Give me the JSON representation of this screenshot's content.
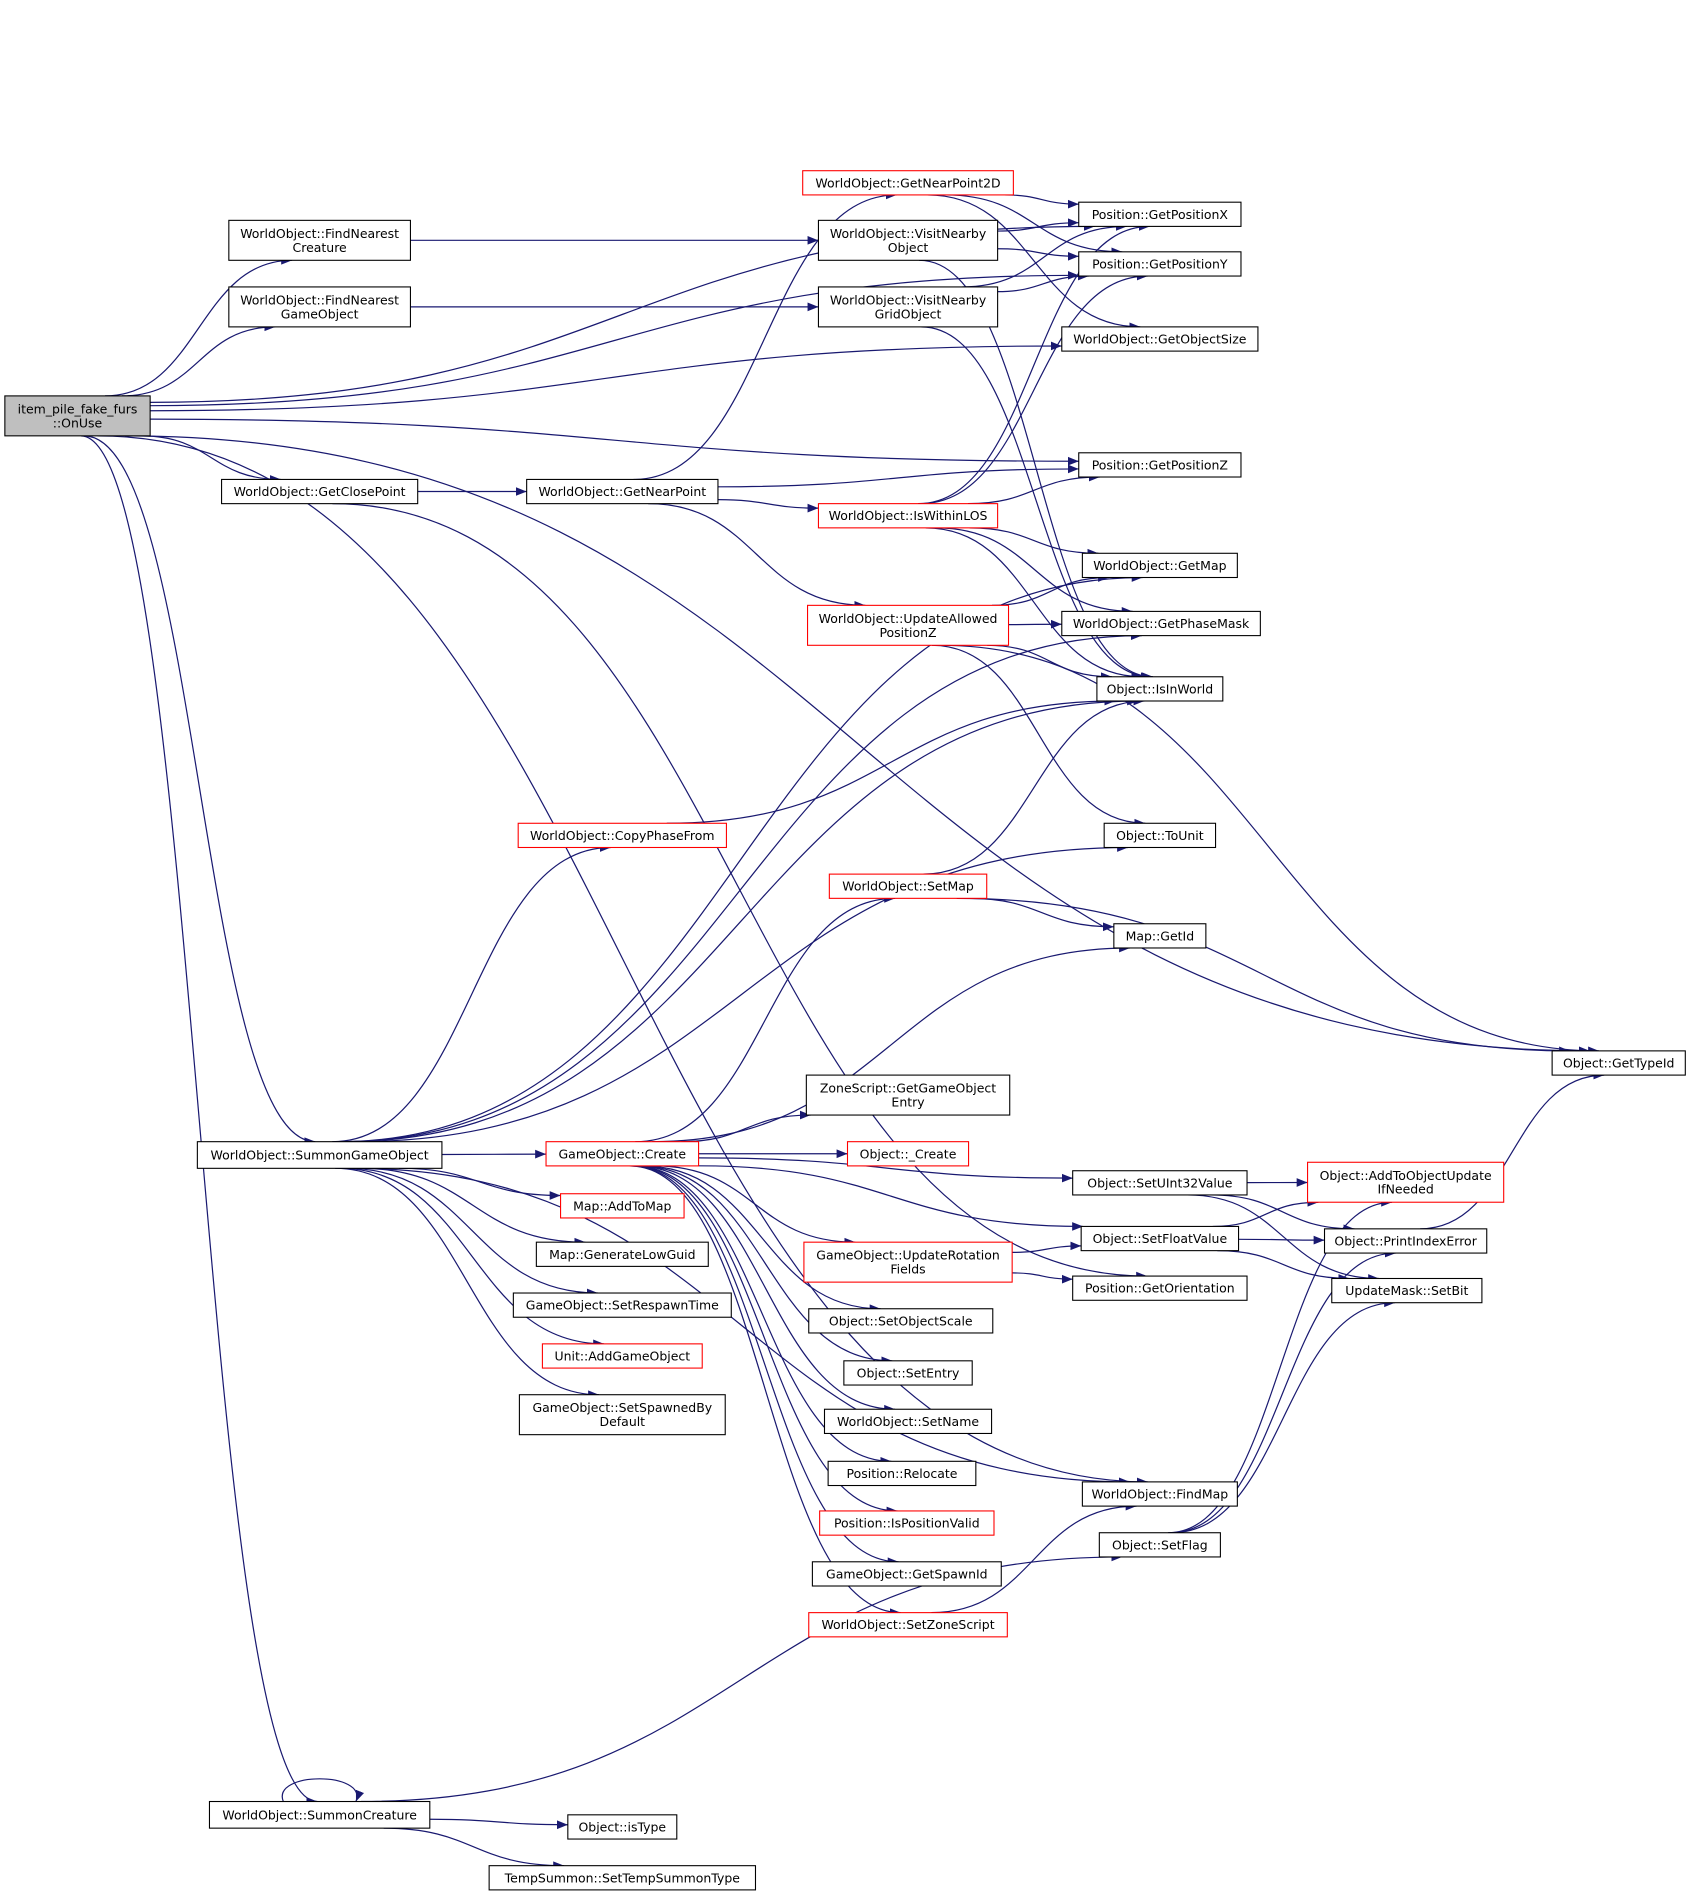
{
  "colors": {
    "edge": "#191970",
    "highlight_border": "#ff0000",
    "root_fill": "#bfbfbf"
  },
  "nodes": [
    {
      "lines": [
        "item_pile_fake_furs",
        "::OnUse"
      ],
      "red": false,
      "root": true
    },
    {
      "lines": [
        "WorldObject::FindNearest",
        "Creature"
      ],
      "red": false
    },
    {
      "lines": [
        "WorldObject::FindNearest",
        "GameObject"
      ],
      "red": false
    },
    {
      "lines": [
        "WorldObject::GetClosePoint"
      ],
      "red": false
    },
    {
      "lines": [
        "WorldObject::SummonGameObject"
      ],
      "red": false
    },
    {
      "lines": [
        "WorldObject::SummonCreature"
      ],
      "red": false
    },
    {
      "lines": [
        "WorldObject::GetNearPoint2D"
      ],
      "red": true
    },
    {
      "lines": [
        "WorldObject::VisitNearby",
        "Object"
      ],
      "red": false
    },
    {
      "lines": [
        "WorldObject::VisitNearby",
        "GridObject"
      ],
      "red": false
    },
    {
      "lines": [
        "WorldObject::GetNearPoint"
      ],
      "red": false
    },
    {
      "lines": [
        "WorldObject::IsWithinLOS"
      ],
      "red": true
    },
    {
      "lines": [
        "WorldObject::UpdateAllowed",
        "PositionZ"
      ],
      "red": true
    },
    {
      "lines": [
        "WorldObject::CopyPhaseFrom"
      ],
      "red": true
    },
    {
      "lines": [
        "WorldObject::SetMap"
      ],
      "red": true
    },
    {
      "lines": [
        "GameObject::Create"
      ],
      "red": true
    },
    {
      "lines": [
        "ZoneScript::GetGameObject",
        "Entry"
      ],
      "red": false
    },
    {
      "lines": [
        "Object::_Create"
      ],
      "red": true
    },
    {
      "lines": [
        "Map::AddToMap"
      ],
      "red": true
    },
    {
      "lines": [
        "Map::GenerateLowGuid"
      ],
      "red": false
    },
    {
      "lines": [
        "GameObject::SetRespawnTime"
      ],
      "red": false
    },
    {
      "lines": [
        "Unit::AddGameObject"
      ],
      "red": true
    },
    {
      "lines": [
        "GameObject::SetSpawnedBy",
        "Default"
      ],
      "red": false
    },
    {
      "lines": [
        "GameObject::UpdateRotation",
        "Fields"
      ],
      "red": true
    },
    {
      "lines": [
        "Object::SetObjectScale"
      ],
      "red": false
    },
    {
      "lines": [
        "Object::SetEntry"
      ],
      "red": false
    },
    {
      "lines": [
        "WorldObject::SetName"
      ],
      "red": false
    },
    {
      "lines": [
        "Position::Relocate"
      ],
      "red": false
    },
    {
      "lines": [
        "Position::IsPositionValid"
      ],
      "red": true
    },
    {
      "lines": [
        "GameObject::GetSpawnId"
      ],
      "red": false
    },
    {
      "lines": [
        "WorldObject::SetZoneScript"
      ],
      "red": true
    },
    {
      "lines": [
        "Position::GetPositionX"
      ],
      "red": false
    },
    {
      "lines": [
        "Position::GetPositionY"
      ],
      "red": false
    },
    {
      "lines": [
        "WorldObject::GetObjectSize"
      ],
      "red": false
    },
    {
      "lines": [
        "Position::GetPositionZ"
      ],
      "red": false
    },
    {
      "lines": [
        "WorldObject::GetMap"
      ],
      "red": false
    },
    {
      "lines": [
        "WorldObject::GetPhaseMask"
      ],
      "red": false
    },
    {
      "lines": [
        "Object::IsInWorld"
      ],
      "red": false
    },
    {
      "lines": [
        "Object::ToUnit"
      ],
      "red": false
    },
    {
      "lines": [
        "Map::GetId"
      ],
      "red": false
    },
    {
      "lines": [
        "Object::SetUInt32Value"
      ],
      "red": false
    },
    {
      "lines": [
        "Object::SetFloatValue"
      ],
      "red": false
    },
    {
      "lines": [
        "Position::GetOrientation"
      ],
      "red": false
    },
    {
      "lines": [
        "WorldObject::FindMap"
      ],
      "red": false
    },
    {
      "lines": [
        "Object::SetFlag"
      ],
      "red": false
    },
    {
      "lines": [
        "Object::GetTypeId"
      ],
      "red": false
    },
    {
      "lines": [
        "Object::AddToObjectUpdate",
        "IfNeeded"
      ],
      "red": true
    },
    {
      "lines": [
        "Object::PrintIndexError"
      ],
      "red": false
    },
    {
      "lines": [
        "UpdateMask::SetBit"
      ],
      "red": false
    },
    {
      "lines": [
        "Object::isType"
      ],
      "red": false
    },
    {
      "lines": [
        "TempSummon::SetTempSummonType"
      ],
      "red": false
    }
  ],
  "edges": [
    [
      0,
      1
    ],
    [
      0,
      2
    ],
    [
      0,
      3
    ],
    [
      0,
      4
    ],
    [
      0,
      5
    ],
    [
      0,
      30
    ],
    [
      0,
      31
    ],
    [
      0,
      32
    ],
    [
      0,
      33
    ],
    [
      0,
      42
    ],
    [
      0,
      44
    ],
    [
      1,
      7
    ],
    [
      2,
      8
    ],
    [
      3,
      9
    ],
    [
      3,
      41
    ],
    [
      9,
      6
    ],
    [
      9,
      33
    ],
    [
      9,
      10
    ],
    [
      9,
      11
    ],
    [
      6,
      30
    ],
    [
      6,
      31
    ],
    [
      6,
      32
    ],
    [
      7,
      30
    ],
    [
      7,
      31
    ],
    [
      7,
      36
    ],
    [
      8,
      30
    ],
    [
      8,
      31
    ],
    [
      8,
      36
    ],
    [
      10,
      30
    ],
    [
      10,
      31
    ],
    [
      10,
      33
    ],
    [
      10,
      34
    ],
    [
      10,
      35
    ],
    [
      10,
      36
    ],
    [
      11,
      34
    ],
    [
      11,
      35
    ],
    [
      11,
      36
    ],
    [
      11,
      37
    ],
    [
      11,
      44
    ],
    [
      12,
      36
    ],
    [
      13,
      36
    ],
    [
      13,
      38
    ],
    [
      13,
      44
    ],
    [
      4,
      14
    ],
    [
      4,
      17
    ],
    [
      4,
      18
    ],
    [
      4,
      19
    ],
    [
      4,
      20
    ],
    [
      4,
      21
    ],
    [
      4,
      12
    ],
    [
      4,
      34
    ],
    [
      4,
      35
    ],
    [
      4,
      36
    ],
    [
      4,
      37
    ],
    [
      4,
      42
    ],
    [
      14,
      15
    ],
    [
      14,
      16
    ],
    [
      14,
      22
    ],
    [
      14,
      23
    ],
    [
      14,
      24
    ],
    [
      14,
      25
    ],
    [
      14,
      26
    ],
    [
      14,
      27
    ],
    [
      14,
      28
    ],
    [
      14,
      29
    ],
    [
      14,
      13
    ],
    [
      14,
      38
    ],
    [
      14,
      39
    ],
    [
      14,
      40
    ],
    [
      22,
      40
    ],
    [
      22,
      41
    ],
    [
      29,
      42
    ],
    [
      39,
      45
    ],
    [
      39,
      46
    ],
    [
      39,
      47
    ],
    [
      40,
      45
    ],
    [
      40,
      46
    ],
    [
      40,
      47
    ],
    [
      43,
      45
    ],
    [
      43,
      46
    ],
    [
      43,
      47
    ],
    [
      46,
      44
    ],
    [
      5,
      5
    ],
    [
      5,
      48
    ],
    [
      5,
      49
    ],
    [
      5,
      43
    ]
  ]
}
